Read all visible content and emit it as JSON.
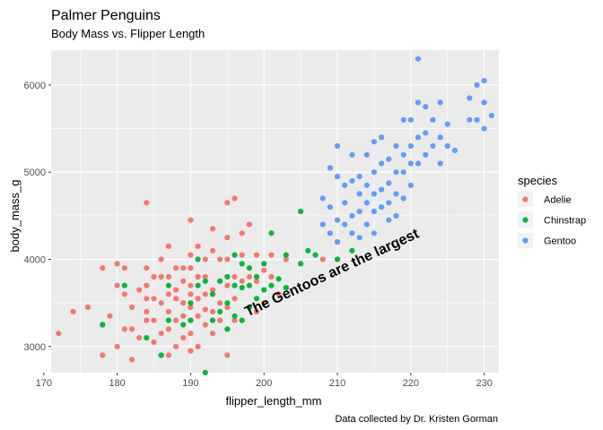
{
  "chart_data": {
    "type": "scatter",
    "title": "Palmer Penguins",
    "subtitle": "Body Mass vs. Flipper Length",
    "xlabel": "flipper_length_mm",
    "ylabel": "body_mass_g",
    "caption": "Data collected by Dr. Kristen Gorman",
    "annotation": "The Gentoos are the largest",
    "xlim": [
      171,
      232
    ],
    "ylim": [
      2700,
      6400
    ],
    "xticks": [
      170,
      180,
      190,
      200,
      210,
      220,
      230
    ],
    "yticks": [
      3000,
      4000,
      5000,
      6000
    ],
    "grid": true,
    "legend": {
      "title": "species",
      "position": "right"
    },
    "colors": {
      "panel": "#ebebeb",
      "grid": "#ffffff",
      "annotation": "#000080"
    },
    "series": [
      {
        "name": "Adelie",
        "color": "#f8766d",
        "points": [
          [
            172,
            3150
          ],
          [
            174,
            3400
          ],
          [
            176,
            3450
          ],
          [
            178,
            2900
          ],
          [
            178,
            3250
          ],
          [
            178,
            3900
          ],
          [
            179,
            3350
          ],
          [
            180,
            3000
          ],
          [
            180,
            3700
          ],
          [
            180,
            3950
          ],
          [
            181,
            3200
          ],
          [
            181,
            3600
          ],
          [
            181,
            3900
          ],
          [
            182,
            2850
          ],
          [
            182,
            3200
          ],
          [
            182,
            3450
          ],
          [
            183,
            3100
          ],
          [
            183,
            3650
          ],
          [
            184,
            3300
          ],
          [
            184,
            3400
          ],
          [
            184,
            3550
          ],
          [
            184,
            3700
          ],
          [
            184,
            3900
          ],
          [
            184,
            4650
          ],
          [
            185,
            3050
          ],
          [
            185,
            3300
          ],
          [
            185,
            3550
          ],
          [
            185,
            3800
          ],
          [
            186,
            2900
          ],
          [
            186,
            3150
          ],
          [
            186,
            3500
          ],
          [
            186,
            3800
          ],
          [
            186,
            4000
          ],
          [
            187,
            2900
          ],
          [
            187,
            3200
          ],
          [
            187,
            3400
          ],
          [
            187,
            3600
          ],
          [
            187,
            3800
          ],
          [
            187,
            4150
          ],
          [
            188,
            3000
          ],
          [
            188,
            3300
          ],
          [
            188,
            3550
          ],
          [
            188,
            3650
          ],
          [
            188,
            3900
          ],
          [
            189,
            3100
          ],
          [
            189,
            3350
          ],
          [
            189,
            3500
          ],
          [
            189,
            3750
          ],
          [
            189,
            3900
          ],
          [
            190,
            2950
          ],
          [
            190,
            3150
          ],
          [
            190,
            3300
          ],
          [
            190,
            3450
          ],
          [
            190,
            3600
          ],
          [
            190,
            3700
          ],
          [
            190,
            3900
          ],
          [
            190,
            4050
          ],
          [
            190,
            4450
          ],
          [
            191,
            3000
          ],
          [
            191,
            3350
          ],
          [
            191,
            3550
          ],
          [
            191,
            3800
          ],
          [
            191,
            4150
          ],
          [
            192,
            3250
          ],
          [
            192,
            3425
          ],
          [
            192,
            3600
          ],
          [
            192,
            3800
          ],
          [
            192,
            4000
          ],
          [
            193,
            3150
          ],
          [
            193,
            3400
          ],
          [
            193,
            3650
          ],
          [
            193,
            4100
          ],
          [
            193,
            4350
          ],
          [
            194,
            3300
          ],
          [
            194,
            3500
          ],
          [
            194,
            3750
          ],
          [
            194,
            4000
          ],
          [
            195,
            2900
          ],
          [
            195,
            3450
          ],
          [
            195,
            3700
          ],
          [
            195,
            4000
          ],
          [
            195,
            4250
          ],
          [
            195,
            4650
          ],
          [
            196,
            3300
          ],
          [
            196,
            3550
          ],
          [
            196,
            3800
          ],
          [
            196,
            4700
          ],
          [
            197,
            3300
          ],
          [
            197,
            3750
          ],
          [
            197,
            4050
          ],
          [
            197,
            4300
          ],
          [
            198,
            3450
          ],
          [
            198,
            3800
          ],
          [
            198,
            4400
          ],
          [
            199,
            3400
          ],
          [
            199,
            3750
          ],
          [
            199,
            4050
          ],
          [
            200,
            3500
          ],
          [
            200,
            3875
          ],
          [
            201,
            3800
          ],
          [
            201,
            4050
          ],
          [
            202,
            3600
          ],
          [
            203,
            4000
          ],
          [
            208,
            4000
          ],
          [
            210,
            4200
          ]
        ]
      },
      {
        "name": "Chinstrap",
        "color": "#00ba38",
        "points": [
          [
            178,
            3250
          ],
          [
            181,
            3700
          ],
          [
            184,
            3100
          ],
          [
            186,
            2900
          ],
          [
            187,
            3300
          ],
          [
            187,
            3700
          ],
          [
            189,
            3250
          ],
          [
            190,
            3300
          ],
          [
            190,
            3500
          ],
          [
            191,
            3700
          ],
          [
            191,
            4000
          ],
          [
            192,
            2700
          ],
          [
            192,
            3750
          ],
          [
            193,
            3300
          ],
          [
            193,
            3600
          ],
          [
            194,
            3400
          ],
          [
            194,
            3750
          ],
          [
            195,
            3200
          ],
          [
            195,
            3500
          ],
          [
            195,
            3800
          ],
          [
            196,
            3350
          ],
          [
            196,
            3700
          ],
          [
            196,
            4050
          ],
          [
            197,
            3300
          ],
          [
            197,
            3675
          ],
          [
            197,
            3950
          ],
          [
            198,
            3450
          ],
          [
            198,
            3700
          ],
          [
            198,
            3900
          ],
          [
            199,
            3550
          ],
          [
            199,
            3800
          ],
          [
            200,
            3650
          ],
          [
            200,
            3950
          ],
          [
            201,
            3700
          ],
          [
            201,
            4300
          ],
          [
            202,
            3775
          ],
          [
            203,
            3675
          ],
          [
            203,
            4050
          ],
          [
            205,
            3950
          ],
          [
            205,
            4550
          ],
          [
            206,
            4100
          ],
          [
            207,
            4050
          ],
          [
            210,
            4000
          ],
          [
            212,
            4100
          ]
        ]
      },
      {
        "name": "Gentoo",
        "color": "#619cff",
        "points": [
          [
            208,
            4400
          ],
          [
            208,
            4700
          ],
          [
            209,
            4300
          ],
          [
            209,
            4600
          ],
          [
            209,
            5050
          ],
          [
            210,
            4200
          ],
          [
            210,
            4450
          ],
          [
            210,
            4950
          ],
          [
            210,
            5300
          ],
          [
            211,
            4400
          ],
          [
            211,
            4650
          ],
          [
            211,
            4850
          ],
          [
            212,
            4300
          ],
          [
            212,
            4500
          ],
          [
            212,
            4900
          ],
          [
            212,
            5200
          ],
          [
            213,
            4250
          ],
          [
            213,
            4550
          ],
          [
            213,
            4750
          ],
          [
            213,
            4950
          ],
          [
            214,
            4400
          ],
          [
            214,
            4650
          ],
          [
            214,
            4850
          ],
          [
            214,
            5200
          ],
          [
            215,
            4300
          ],
          [
            215,
            4550
          ],
          [
            215,
            4750
          ],
          [
            215,
            5000
          ],
          [
            215,
            5350
          ],
          [
            216,
            4600
          ],
          [
            216,
            4800
          ],
          [
            216,
            5100
          ],
          [
            216,
            5400
          ],
          [
            217,
            4450
          ],
          [
            217,
            4650
          ],
          [
            217,
            4875
          ],
          [
            217,
            5150
          ],
          [
            218,
            4500
          ],
          [
            218,
            4750
          ],
          [
            218,
            5000
          ],
          [
            218,
            5300
          ],
          [
            219,
            4700
          ],
          [
            219,
            5000
          ],
          [
            219,
            5200
          ],
          [
            219,
            5600
          ],
          [
            220,
            4850
          ],
          [
            220,
            5100
          ],
          [
            220,
            5300
          ],
          [
            220,
            5600
          ],
          [
            221,
            5100
          ],
          [
            221,
            5400
          ],
          [
            221,
            5800
          ],
          [
            221,
            6300
          ],
          [
            222,
            5200
          ],
          [
            222,
            5450
          ],
          [
            222,
            5750
          ],
          [
            223,
            5300
          ],
          [
            223,
            5600
          ],
          [
            224,
            5100
          ],
          [
            224,
            5400
          ],
          [
            224,
            5800
          ],
          [
            225,
            5300
          ],
          [
            225,
            5550
          ],
          [
            226,
            5250
          ],
          [
            228,
            5600
          ],
          [
            228,
            5850
          ],
          [
            229,
            5600
          ],
          [
            229,
            6000
          ],
          [
            230,
            5500
          ],
          [
            230,
            5800
          ],
          [
            230,
            6050
          ],
          [
            231,
            5650
          ]
        ]
      }
    ]
  }
}
